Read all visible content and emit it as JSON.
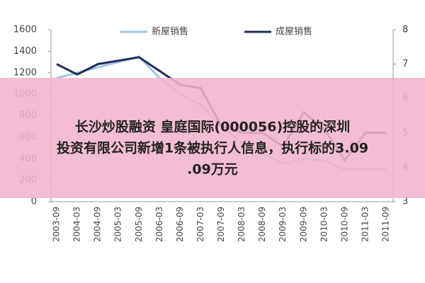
{
  "chart_data": {
    "type": "line",
    "categories": [
      "2003-09",
      "2004-03",
      "2004-09",
      "2005-03",
      "2005-09",
      "2006-03",
      "2006-09",
      "2007-03",
      "2007-09",
      "2008-03",
      "2008-09",
      "2009-03",
      "2009-09",
      "2010-03",
      "2010-09",
      "2011-03",
      "2011-09"
    ],
    "series": [
      {
        "name": "新屋销售",
        "color": "#9dc3e6",
        "values": [
          1150,
          1200,
          1250,
          1300,
          1350,
          1150,
          1000,
          900,
          700,
          550,
          450,
          350,
          400,
          380,
          300,
          300,
          300
        ]
      },
      {
        "name": "成屋销售",
        "color": "#1f2d5a",
        "axis": "y2",
        "values": [
          7.0,
          6.7,
          7.0,
          7.1,
          7.2,
          6.8,
          6.4,
          6.3,
          5.2,
          5.0,
          5.0,
          4.6,
          5.6,
          5.1,
          4.2,
          5.0,
          5.0
        ]
      }
    ],
    "ylim": [
      0,
      1600
    ],
    "yticks": [
      0,
      200,
      400,
      600,
      800,
      1000,
      1200,
      1400,
      1600
    ],
    "y2lim": [
      3,
      8
    ],
    "y2ticks": [
      3,
      4,
      5,
      6,
      7,
      8
    ]
  },
  "banner": {
    "lines": [
      "长沙炒股融资 皇庭国际(000056)控股的深圳",
      "投资有限公司新增1条被执行人信息，执行标的3.09",
      ".09万元"
    ]
  }
}
